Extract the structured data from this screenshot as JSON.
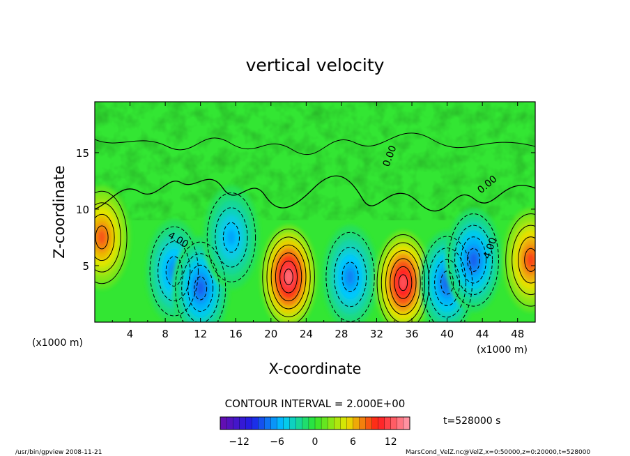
{
  "chart_data": {
    "type": "heatmap",
    "title": "vertical velocity",
    "xlabel": "X-coordinate",
    "ylabel": "Z-coordinate",
    "x_unit_left": "(x1000 m)",
    "x_unit_right": "(x1000 m)",
    "xlim": [
      0,
      50
    ],
    "ylim": [
      0,
      19.5
    ],
    "x_ticks": [
      "4",
      "8",
      "12",
      "16",
      "20",
      "24",
      "28",
      "32",
      "36",
      "40",
      "44",
      "48"
    ],
    "y_ticks": [
      "5",
      "10",
      "15"
    ],
    "contour_interval_text": "CONTOUR INTERVAL = 2.000E+00",
    "contour_labels": [
      "0.00",
      "4.00",
      "0.00",
      "4.00"
    ],
    "time_text": "t=528000 s",
    "colorbar": {
      "range": [
        -15,
        15
      ],
      "ticks": [
        "−12",
        "−6",
        "0",
        "6",
        "12"
      ],
      "colors": [
        "#6a0dad",
        "#1e1ee6",
        "#00c8ff",
        "#2ee62e",
        "#e6e600",
        "#ff1a1a",
        "#ff9fb0"
      ]
    },
    "cells": [
      {
        "x": 0.8,
        "z": 7.5,
        "w": 8.5
      },
      {
        "x": 9.0,
        "z": 4.5,
        "w": -7.0
      },
      {
        "x": 12.0,
        "z": 3.0,
        "w": -8.0
      },
      {
        "x": 15.5,
        "z": 7.5,
        "w": -6.0
      },
      {
        "x": 22.0,
        "z": 4.0,
        "w": 13.0
      },
      {
        "x": 29.0,
        "z": 4.0,
        "w": -7.0
      },
      {
        "x": 35.0,
        "z": 3.5,
        "w": 12.0
      },
      {
        "x": 40.0,
        "z": 3.5,
        "w": -8.0
      },
      {
        "x": 43.0,
        "z": 5.5,
        "w": -8.0
      },
      {
        "x": 49.5,
        "z": 5.5,
        "w": 9.0
      }
    ]
  },
  "footer": {
    "left": "/usr/bin/gpview   2008-11-21",
    "right": "MarsCond_VelZ.nc@VelZ,x=0:50000,z=0:20000,t=528000"
  }
}
